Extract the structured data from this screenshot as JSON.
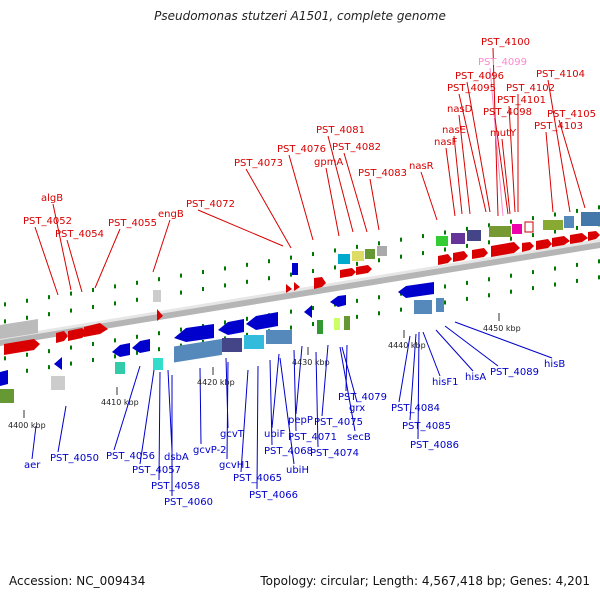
{
  "header": {
    "title": "Pseudomonas stutzeri A1501, complete genome"
  },
  "footer": {
    "accession": "Accession: NC_009434",
    "stats": "Topology: circular; Length: 4,567,418 bp; Genes: 4,201"
  },
  "colors": {
    "forward": "#d80000",
    "reverse": "#0000cc",
    "highlight": "#ff88cc",
    "backbone": "#888888",
    "tick": "#007700"
  },
  "axis": {
    "unit": "kbp",
    "ticks": [
      {
        "label": "4400 kbp",
        "value": 4400
      },
      {
        "label": "4410 kbp",
        "value": 4410
      },
      {
        "label": "4420 kbp",
        "value": 4420
      },
      {
        "label": "4430 kbp",
        "value": 4430
      },
      {
        "label": "4440 kbp",
        "value": 4440
      },
      {
        "label": "4450 kbp",
        "value": 4450
      }
    ]
  },
  "upper_labels": [
    {
      "text": "PST_4100",
      "color": "red"
    },
    {
      "text": "PST_4099",
      "color": "pink"
    },
    {
      "text": "PST_4096",
      "color": "red"
    },
    {
      "text": "PST_4104",
      "color": "red"
    },
    {
      "text": "PST_4095",
      "color": "red"
    },
    {
      "text": "PST_4102",
      "color": "red"
    },
    {
      "text": "PST_4101",
      "color": "red"
    },
    {
      "text": "nasD",
      "color": "red"
    },
    {
      "text": "PST_4098",
      "color": "red"
    },
    {
      "text": "PST_4105",
      "color": "red"
    },
    {
      "text": "nasE",
      "color": "red"
    },
    {
      "text": "mutY",
      "color": "red"
    },
    {
      "text": "PST_4103",
      "color": "red"
    },
    {
      "text": "nasF",
      "color": "red"
    },
    {
      "text": "PST_4081",
      "color": "red"
    },
    {
      "text": "PST_4076",
      "color": "red"
    },
    {
      "text": "PST_4082",
      "color": "red"
    },
    {
      "text": "nasR",
      "color": "red"
    },
    {
      "text": "PST_4073",
      "color": "red"
    },
    {
      "text": "gpmA",
      "color": "red"
    },
    {
      "text": "PST_4083",
      "color": "red"
    },
    {
      "text": "algB",
      "color": "red"
    },
    {
      "text": "PST_4072",
      "color": "red"
    },
    {
      "text": "engB",
      "color": "red"
    },
    {
      "text": "PST_4052",
      "color": "red"
    },
    {
      "text": "PST_4055",
      "color": "red"
    },
    {
      "text": "PST_4054",
      "color": "red"
    }
  ],
  "lower_labels": [
    {
      "text": "hisB"
    },
    {
      "text": "PST_4089"
    },
    {
      "text": "hisA"
    },
    {
      "text": "hisF1"
    },
    {
      "text": "PST_4079"
    },
    {
      "text": "grx"
    },
    {
      "text": "PST_4084"
    },
    {
      "text": "PST_4075"
    },
    {
      "text": "pepP"
    },
    {
      "text": "PST_4085"
    },
    {
      "text": "secB"
    },
    {
      "text": "ubiF"
    },
    {
      "text": "PST_4071"
    },
    {
      "text": "gcvT"
    },
    {
      "text": "PST_4086"
    },
    {
      "text": "PST_4068"
    },
    {
      "text": "PST_4074"
    },
    {
      "text": "gcvP-2"
    },
    {
      "text": "gcvH1"
    },
    {
      "text": "ubiH"
    },
    {
      "text": "aer"
    },
    {
      "text": "PST_4050"
    },
    {
      "text": "PST_4056"
    },
    {
      "text": "dsbA"
    },
    {
      "text": "PST_4057"
    },
    {
      "text": "PST_4065"
    },
    {
      "text": "PST_4058"
    },
    {
      "text": "PST_4066"
    },
    {
      "text": "PST_4060"
    }
  ]
}
